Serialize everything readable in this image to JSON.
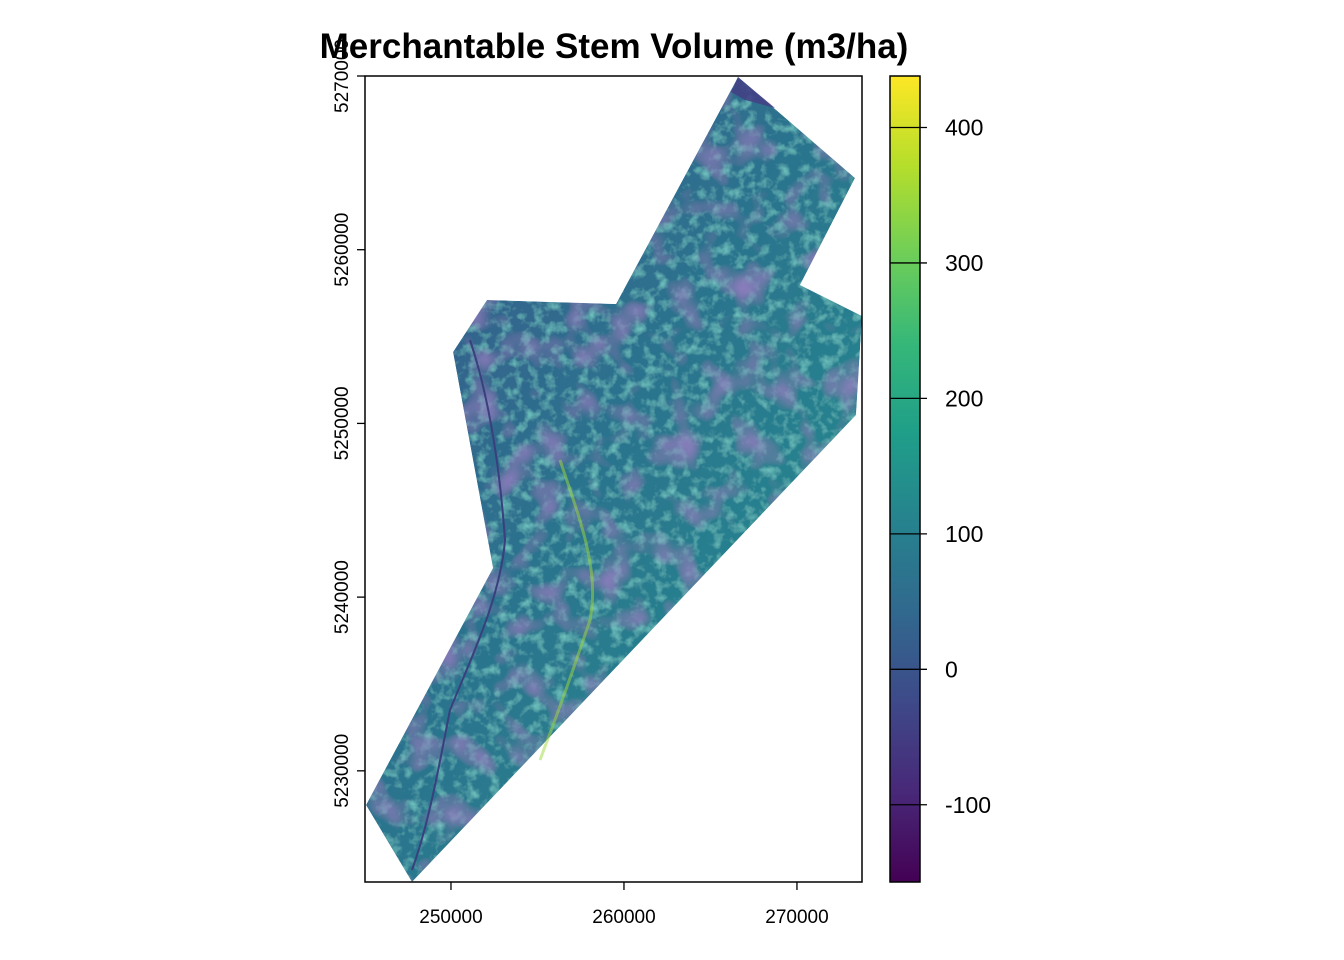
{
  "chart_data": {
    "type": "heatmap",
    "title": "Merchantable Stem Volume (m3/ha)",
    "xlabel": "",
    "ylabel": "",
    "xlim": [
      245030,
      273760
    ],
    "ylim": [
      5223600,
      5270000
    ],
    "x_ticks": [
      250000,
      260000,
      270000
    ],
    "x_tick_labels": [
      "250000",
      "260000",
      "270000"
    ],
    "y_ticks": [
      5230000,
      5240000,
      5250000,
      5260000,
      5270000
    ],
    "y_tick_labels": [
      "5230000",
      "5240000",
      "5250000",
      "5260000",
      "5270000"
    ],
    "colorbar": {
      "palette": "viridis",
      "range": [
        -157,
        438
      ],
      "ticks": [
        -100,
        0,
        100,
        200,
        300,
        400
      ],
      "tick_labels": [
        "-100",
        "0",
        "100",
        "200",
        "300",
        "400"
      ],
      "colors": [
        "#440154",
        "#482878",
        "#3e4989",
        "#31688e",
        "#26828e",
        "#1f9e89",
        "#35b779",
        "#6ece58",
        "#b5de2b",
        "#fde725"
      ]
    },
    "legend_position": "right",
    "grid": false
  }
}
